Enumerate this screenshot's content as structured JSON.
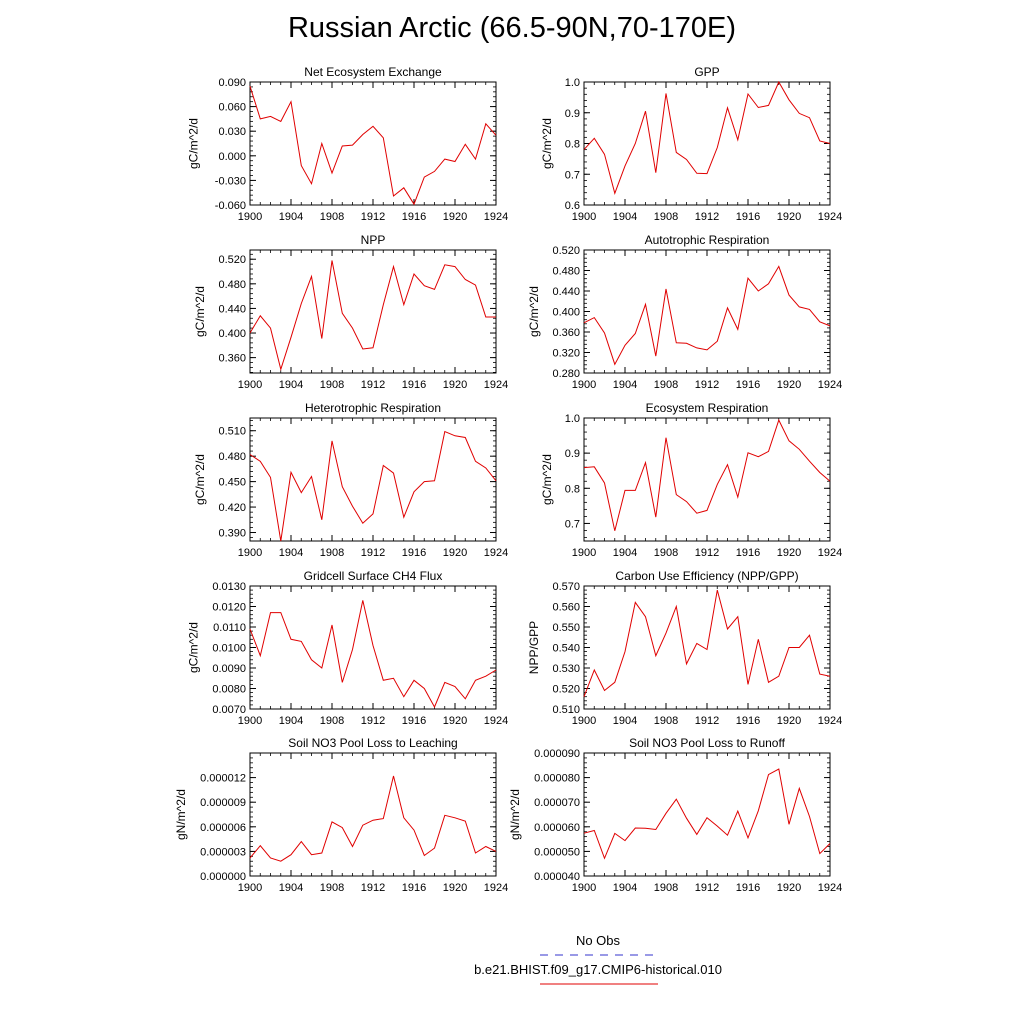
{
  "title": "Russian Arctic (66.5-90N,70-170E)",
  "colors": {
    "model": "#e00000",
    "obs": "#3333cc",
    "axis": "#000000"
  },
  "legend": {
    "obs_label": "No Obs",
    "model_label": "b.e21.BHIST.f09_g17.CMIP6-historical.010"
  },
  "chart_data": [
    {
      "type": "line",
      "title": "Net Ecosystem Exchange",
      "ylabel": "gC/m^2/d",
      "xlim": [
        1900,
        1924
      ],
      "ylim": [
        -0.06,
        0.09
      ],
      "xticks": [
        1900,
        1904,
        1908,
        1912,
        1916,
        1920,
        1924
      ],
      "yticks": [
        -0.06,
        -0.03,
        0.0,
        0.03,
        0.06,
        0.09
      ],
      "ytick_labels": [
        "-0.060",
        "-0.030",
        "0.000",
        "0.030",
        "0.060",
        "0.090"
      ],
      "x": [
        1900,
        1901,
        1902,
        1903,
        1904,
        1905,
        1906,
        1907,
        1908,
        1909,
        1910,
        1911,
        1912,
        1913,
        1914,
        1915,
        1916,
        1917,
        1918,
        1919,
        1920,
        1921,
        1922,
        1923,
        1924
      ],
      "series": [
        {
          "name": "b.e21.BHIST.f09_g17.CMIP6-historical.010",
          "values": [
            0.085,
            0.045,
            0.048,
            0.042,
            0.066,
            -0.012,
            -0.034,
            0.015,
            -0.021,
            0.012,
            0.013,
            0.026,
            0.036,
            0.022,
            -0.049,
            -0.039,
            -0.059,
            -0.026,
            -0.019,
            -0.004,
            -0.007,
            0.014,
            -0.004,
            0.039,
            0.025
          ]
        }
      ]
    },
    {
      "type": "line",
      "title": "GPP",
      "ylabel": "gC/m^2/d",
      "xlim": [
        1900,
        1924
      ],
      "ylim": [
        0.6,
        1.0
      ],
      "xticks": [
        1900,
        1904,
        1908,
        1912,
        1916,
        1920,
        1924
      ],
      "yticks": [
        0.6,
        0.7,
        0.8,
        0.9,
        1.0
      ],
      "ytick_labels": [
        "0.6",
        "0.7",
        "0.8",
        "0.9",
        "1.0"
      ],
      "x": [
        1900,
        1901,
        1902,
        1903,
        1904,
        1905,
        1906,
        1907,
        1908,
        1909,
        1910,
        1911,
        1912,
        1913,
        1914,
        1915,
        1916,
        1917,
        1918,
        1919,
        1920,
        1921,
        1922,
        1923,
        1924
      ],
      "series": [
        {
          "name": "b.e21.BHIST.f09_g17.CMIP6-historical.010",
          "values": [
            0.78,
            0.817,
            0.765,
            0.638,
            0.727,
            0.8,
            0.905,
            0.705,
            0.963,
            0.771,
            0.748,
            0.703,
            0.702,
            0.787,
            0.916,
            0.812,
            0.961,
            0.917,
            0.924,
            1.0,
            0.942,
            0.898,
            0.884,
            0.808,
            0.8
          ]
        }
      ]
    },
    {
      "type": "line",
      "title": "NPP",
      "ylabel": "gC/m^2/d",
      "xlim": [
        1900,
        1924
      ],
      "ylim": [
        0.335,
        0.535
      ],
      "xticks": [
        1900,
        1904,
        1908,
        1912,
        1916,
        1920,
        1924
      ],
      "yticks": [
        0.36,
        0.4,
        0.44,
        0.48,
        0.52
      ],
      "ytick_labels": [
        "0.360",
        "0.400",
        "0.440",
        "0.480",
        "0.520"
      ],
      "x": [
        1900,
        1901,
        1902,
        1903,
        1904,
        1905,
        1906,
        1907,
        1908,
        1909,
        1910,
        1911,
        1912,
        1913,
        1914,
        1915,
        1916,
        1917,
        1918,
        1919,
        1920,
        1921,
        1922,
        1923,
        1924
      ],
      "series": [
        {
          "name": "b.e21.BHIST.f09_g17.CMIP6-historical.010",
          "values": [
            0.4,
            0.428,
            0.408,
            0.341,
            0.393,
            0.448,
            0.492,
            0.391,
            0.518,
            0.432,
            0.408,
            0.374,
            0.376,
            0.446,
            0.508,
            0.446,
            0.496,
            0.477,
            0.471,
            0.511,
            0.508,
            0.487,
            0.478,
            0.426,
            0.426
          ]
        }
      ]
    },
    {
      "type": "line",
      "title": "Autotrophic Respiration",
      "ylabel": "gC/m^2/d",
      "xlim": [
        1900,
        1924
      ],
      "ylim": [
        0.28,
        0.52
      ],
      "xticks": [
        1900,
        1904,
        1908,
        1912,
        1916,
        1920,
        1924
      ],
      "yticks": [
        0.28,
        0.32,
        0.36,
        0.4,
        0.44,
        0.48,
        0.52
      ],
      "ytick_labels": [
        "0.280",
        "0.320",
        "0.360",
        "0.400",
        "0.440",
        "0.480",
        "0.520"
      ],
      "x": [
        1900,
        1901,
        1902,
        1903,
        1904,
        1905,
        1906,
        1907,
        1908,
        1909,
        1910,
        1911,
        1912,
        1913,
        1914,
        1915,
        1916,
        1917,
        1918,
        1919,
        1920,
        1921,
        1922,
        1923,
        1924
      ],
      "series": [
        {
          "name": "b.e21.BHIST.f09_g17.CMIP6-historical.010",
          "values": [
            0.378,
            0.388,
            0.358,
            0.297,
            0.334,
            0.357,
            0.414,
            0.313,
            0.444,
            0.339,
            0.338,
            0.329,
            0.325,
            0.342,
            0.407,
            0.365,
            0.465,
            0.44,
            0.454,
            0.488,
            0.432,
            0.409,
            0.404,
            0.38,
            0.372
          ]
        }
      ]
    },
    {
      "type": "line",
      "title": "Heterotrophic Respiration",
      "ylabel": "gC/m^2/d",
      "xlim": [
        1900,
        1924
      ],
      "ylim": [
        0.38,
        0.525
      ],
      "xticks": [
        1900,
        1904,
        1908,
        1912,
        1916,
        1920,
        1924
      ],
      "yticks": [
        0.39,
        0.42,
        0.45,
        0.48,
        0.51
      ],
      "ytick_labels": [
        "0.390",
        "0.420",
        "0.450",
        "0.480",
        "0.510"
      ],
      "x": [
        1900,
        1901,
        1902,
        1903,
        1904,
        1905,
        1906,
        1907,
        1908,
        1909,
        1910,
        1911,
        1912,
        1913,
        1914,
        1915,
        1916,
        1917,
        1918,
        1919,
        1920,
        1921,
        1922,
        1923,
        1924
      ],
      "series": [
        {
          "name": "b.e21.BHIST.f09_g17.CMIP6-historical.010",
          "values": [
            0.482,
            0.474,
            0.455,
            0.38,
            0.461,
            0.437,
            0.456,
            0.405,
            0.498,
            0.444,
            0.421,
            0.401,
            0.412,
            0.469,
            0.46,
            0.408,
            0.438,
            0.45,
            0.451,
            0.509,
            0.504,
            0.502,
            0.474,
            0.466,
            0.451
          ]
        }
      ]
    },
    {
      "type": "line",
      "title": "Ecosystem Respiration",
      "ylabel": "gC/m^2/d",
      "xlim": [
        1900,
        1924
      ],
      "ylim": [
        0.65,
        1.0
      ],
      "xticks": [
        1900,
        1904,
        1908,
        1912,
        1916,
        1920,
        1924
      ],
      "yticks": [
        0.7,
        0.8,
        0.9,
        1.0
      ],
      "ytick_labels": [
        "0.7",
        "0.8",
        "0.9",
        "1.0"
      ],
      "x": [
        1900,
        1901,
        1902,
        1903,
        1904,
        1905,
        1906,
        1907,
        1908,
        1909,
        1910,
        1911,
        1912,
        1913,
        1914,
        1915,
        1916,
        1917,
        1918,
        1919,
        1920,
        1921,
        1922,
        1923,
        1924
      ],
      "series": [
        {
          "name": "b.e21.BHIST.f09_g17.CMIP6-historical.010",
          "values": [
            0.859,
            0.861,
            0.815,
            0.679,
            0.794,
            0.794,
            0.873,
            0.718,
            0.944,
            0.782,
            0.762,
            0.729,
            0.737,
            0.811,
            0.867,
            0.775,
            0.901,
            0.89,
            0.905,
            0.994,
            0.935,
            0.911,
            0.877,
            0.845,
            0.82
          ]
        }
      ]
    },
    {
      "type": "line",
      "title": "Gridcell Surface CH4 Flux",
      "ylabel": "gC/m^2/d",
      "xlim": [
        1900,
        1924
      ],
      "ylim": [
        0.007,
        0.013
      ],
      "xticks": [
        1900,
        1904,
        1908,
        1912,
        1916,
        1920,
        1924
      ],
      "yticks": [
        0.007,
        0.008,
        0.009,
        0.01,
        0.011,
        0.012,
        0.013
      ],
      "ytick_labels": [
        "0.0070",
        "0.0080",
        "0.0090",
        "0.0100",
        "0.0110",
        "0.0120",
        "0.0130"
      ],
      "x": [
        1900,
        1901,
        1902,
        1903,
        1904,
        1905,
        1906,
        1907,
        1908,
        1909,
        1910,
        1911,
        1912,
        1913,
        1914,
        1915,
        1916,
        1917,
        1918,
        1919,
        1920,
        1921,
        1922,
        1923,
        1924
      ],
      "series": [
        {
          "name": "b.e21.BHIST.f09_g17.CMIP6-historical.010",
          "values": [
            0.0109,
            0.0096,
            0.0117,
            0.0117,
            0.0104,
            0.0103,
            0.0094,
            0.009,
            0.0111,
            0.0083,
            0.0099,
            0.0123,
            0.0101,
            0.0084,
            0.0085,
            0.0076,
            0.0084,
            0.008,
            0.0071,
            0.0083,
            0.0081,
            0.0075,
            0.0084,
            0.0086,
            0.0089
          ]
        }
      ]
    },
    {
      "type": "line",
      "title": "Carbon Use Efficiency (NPP/GPP)",
      "ylabel": "NPP/GPP",
      "xlim": [
        1900,
        1924
      ],
      "ylim": [
        0.51,
        0.57
      ],
      "xticks": [
        1900,
        1904,
        1908,
        1912,
        1916,
        1920,
        1924
      ],
      "yticks": [
        0.51,
        0.52,
        0.53,
        0.54,
        0.55,
        0.56,
        0.57
      ],
      "ytick_labels": [
        "0.510",
        "0.520",
        "0.530",
        "0.540",
        "0.550",
        "0.560",
        "0.570"
      ],
      "x": [
        1900,
        1901,
        1902,
        1903,
        1904,
        1905,
        1906,
        1907,
        1908,
        1909,
        1910,
        1911,
        1912,
        1913,
        1914,
        1915,
        1916,
        1917,
        1918,
        1919,
        1920,
        1921,
        1922,
        1923,
        1924
      ],
      "series": [
        {
          "name": "b.e21.BHIST.f09_g17.CMIP6-historical.010",
          "values": [
            0.516,
            0.529,
            0.519,
            0.523,
            0.538,
            0.562,
            0.555,
            0.536,
            0.547,
            0.56,
            0.532,
            0.542,
            0.539,
            0.568,
            0.549,
            0.555,
            0.522,
            0.544,
            0.523,
            0.526,
            0.54,
            0.54,
            0.546,
            0.527,
            0.526
          ]
        }
      ]
    },
    {
      "type": "line",
      "title": "Soil NO3 Pool Loss to Leaching",
      "ylabel": "gN/m^2/d",
      "xlim": [
        1900,
        1924
      ],
      "ylim": [
        0.0,
        1.5e-05
      ],
      "xticks": [
        1900,
        1904,
        1908,
        1912,
        1916,
        1920,
        1924
      ],
      "yticks": [
        0.0,
        3e-06,
        6e-06,
        9e-06,
        1.2e-05
      ],
      "ytick_labels": [
        "0.000000",
        "0.000003",
        "0.000006",
        "0.000009",
        "0.000012"
      ],
      "x": [
        1900,
        1901,
        1902,
        1903,
        1904,
        1905,
        1906,
        1907,
        1908,
        1909,
        1910,
        1911,
        1912,
        1913,
        1914,
        1915,
        1916,
        1917,
        1918,
        1919,
        1920,
        1921,
        1922,
        1923,
        1924
      ],
      "series": [
        {
          "name": "b.e21.BHIST.f09_g17.CMIP6-historical.010",
          "values": [
            2.2e-06,
            3.7e-06,
            2.2e-06,
            1.8e-06,
            2.6e-06,
            4.2e-06,
            2.6e-06,
            2.8e-06,
            6.6e-06,
            5.9e-06,
            3.6e-06,
            6.2e-06,
            6.8e-06,
            7e-06,
            1.22e-05,
            7.1e-06,
            5.6e-06,
            2.5e-06,
            3.4e-06,
            7.4e-06,
            7.1e-06,
            6.7e-06,
            2.8e-06,
            3.6e-06,
            3e-06
          ]
        }
      ]
    },
    {
      "type": "line",
      "title": "Soil NO3 Pool Loss to Runoff",
      "ylabel": "gN/m^2/d",
      "xlim": [
        1900,
        1924
      ],
      "ylim": [
        4e-05,
        9e-05
      ],
      "xticks": [
        1900,
        1904,
        1908,
        1912,
        1916,
        1920,
        1924
      ],
      "yticks": [
        4e-05,
        5e-05,
        6e-05,
        7e-05,
        8e-05,
        9e-05
      ],
      "ytick_labels": [
        "0.000040",
        "0.000050",
        "0.000060",
        "0.000070",
        "0.000080",
        "0.000090"
      ],
      "x": [
        1900,
        1901,
        1902,
        1903,
        1904,
        1905,
        1906,
        1907,
        1908,
        1909,
        1910,
        1911,
        1912,
        1913,
        1914,
        1915,
        1916,
        1917,
        1918,
        1919,
        1920,
        1921,
        1922,
        1923,
        1924
      ],
      "series": [
        {
          "name": "b.e21.BHIST.f09_g17.CMIP6-historical.010",
          "values": [
            5.74e-05,
            5.85e-05,
            4.72e-05,
            5.73e-05,
            5.44e-05,
            5.95e-05,
            5.94e-05,
            5.89e-05,
            6.55e-05,
            7.12e-05,
            6.35e-05,
            5.69e-05,
            6.37e-05,
            6.03e-05,
            5.66e-05,
            6.64e-05,
            5.55e-05,
            6.65e-05,
            8.12e-05,
            8.35e-05,
            6.1e-05,
            7.56e-05,
            6.42e-05,
            4.91e-05,
            5.32e-05
          ]
        }
      ]
    }
  ]
}
